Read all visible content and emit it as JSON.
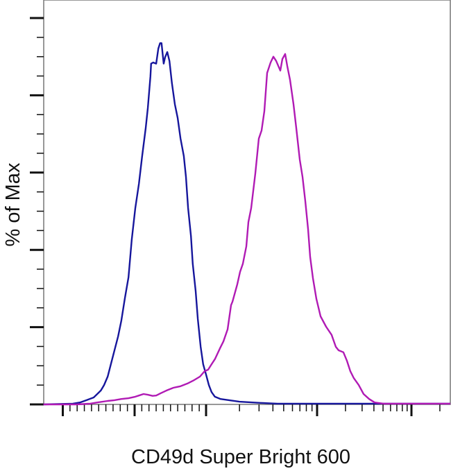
{
  "chart_data": {
    "type": "line",
    "title": "",
    "xlabel": "CD49d Super Bright 600",
    "ylabel": "% of Max",
    "x_scale": "biexponential",
    "xlim": [
      -1270,
      262000
    ],
    "ylim": [
      0,
      104.7
    ],
    "grid": false,
    "legend": "none",
    "y_major_ticks": [
      0,
      20,
      40,
      60,
      80,
      100
    ],
    "y_minor_ticks": [
      5,
      10,
      15,
      25,
      30,
      35,
      45,
      50,
      55,
      65,
      70,
      75,
      85,
      90,
      95
    ],
    "x_major_ticks": [
      -1000,
      0,
      1000,
      10000,
      100000
    ],
    "x_minor_ticks": [
      -900,
      -800,
      -700,
      -600,
      -500,
      -400,
      -300,
      -200,
      -100,
      100,
      200,
      300,
      400,
      500,
      600,
      700,
      800,
      900,
      2000,
      3000,
      4000,
      5000,
      6000,
      7000,
      8000,
      9000,
      20000,
      30000,
      40000,
      50000,
      60000,
      70000,
      80000,
      90000,
      200000
    ],
    "series": [
      {
        "color": "#16169c",
        "points": [
          [
            -1270,
            0
          ],
          [
            -860,
            0.2
          ],
          [
            -760,
            0.5
          ],
          [
            -670,
            1.1
          ],
          [
            -570,
            1.8
          ],
          [
            -520,
            2.7
          ],
          [
            -470,
            3.6
          ],
          [
            -425,
            5.0
          ],
          [
            -375,
            7.2
          ],
          [
            -330,
            10.4
          ],
          [
            -280,
            14.0
          ],
          [
            -230,
            17.6
          ],
          [
            -185,
            21.7
          ],
          [
            -135,
            27.5
          ],
          [
            -85,
            32.9
          ],
          [
            -40,
            42.7
          ],
          [
            10,
            50.8
          ],
          [
            60,
            57.1
          ],
          [
            105,
            64.3
          ],
          [
            155,
            71.5
          ],
          [
            185,
            76.8
          ],
          [
            220,
            84.9
          ],
          [
            230,
            88.2
          ],
          [
            260,
            88.5
          ],
          [
            300,
            88.2
          ],
          [
            330,
            92.1
          ],
          [
            355,
            93.5
          ],
          [
            375,
            93.5
          ],
          [
            405,
            88.2
          ],
          [
            425,
            89.9
          ],
          [
            455,
            91.2
          ],
          [
            485,
            88.9
          ],
          [
            520,
            83.1
          ],
          [
            560,
            77.7
          ],
          [
            600,
            74.1
          ],
          [
            640,
            68.8
          ],
          [
            685,
            64.3
          ],
          [
            715,
            58.9
          ],
          [
            745,
            50.8
          ],
          [
            785,
            43.6
          ],
          [
            810,
            36.4
          ],
          [
            850,
            29.3
          ],
          [
            880,
            22.1
          ],
          [
            920,
            14.9
          ],
          [
            955,
            10.4
          ],
          [
            1000,
            7.7
          ],
          [
            1060,
            5.0
          ],
          [
            1120,
            3.2
          ],
          [
            1200,
            2.0
          ],
          [
            1350,
            1.4
          ],
          [
            1610,
            1.1
          ],
          [
            2000,
            0.7
          ],
          [
            3070,
            0.4
          ],
          [
            4400,
            0.2
          ],
          [
            262000,
            0.2
          ]
        ]
      },
      {
        "color": "#b01ab4",
        "points": [
          [
            -1270,
            0
          ],
          [
            -810,
            0
          ],
          [
            -620,
            0.2
          ],
          [
            -520,
            0.5
          ],
          [
            -375,
            0.9
          ],
          [
            -280,
            1.1
          ],
          [
            -185,
            1.4
          ],
          [
            -85,
            1.6
          ],
          [
            10,
            2.0
          ],
          [
            60,
            2.3
          ],
          [
            125,
            2.7
          ],
          [
            185,
            2.5
          ],
          [
            250,
            2.2
          ],
          [
            300,
            2.3
          ],
          [
            365,
            2.9
          ],
          [
            445,
            3.6
          ],
          [
            540,
            4.3
          ],
          [
            640,
            4.7
          ],
          [
            735,
            5.4
          ],
          [
            830,
            6.3
          ],
          [
            910,
            7.2
          ],
          [
            975,
            8.6
          ],
          [
            1044,
            9.0
          ],
          [
            1120,
            10.4
          ],
          [
            1205,
            11.8
          ],
          [
            1334,
            14.5
          ],
          [
            1432,
            16.3
          ],
          [
            1563,
            19.4
          ],
          [
            1679,
            25.7
          ],
          [
            1730,
            26.6
          ],
          [
            1911,
            31.1
          ],
          [
            2024,
            34.3
          ],
          [
            2143,
            36.4
          ],
          [
            2304,
            40.9
          ],
          [
            2406,
            47.2
          ],
          [
            2547,
            50.8
          ],
          [
            2780,
            59.8
          ],
          [
            2985,
            68.8
          ],
          [
            3162,
            70.9
          ],
          [
            3350,
            75.9
          ],
          [
            3548,
            85.8
          ],
          [
            3811,
            88.5
          ],
          [
            4036,
            90.0
          ],
          [
            4276,
            88.9
          ],
          [
            4665,
            86.4
          ],
          [
            4870,
            89.4
          ],
          [
            5158,
            90.7
          ],
          [
            5383,
            87.6
          ],
          [
            5702,
            84.0
          ],
          [
            6130,
            77.7
          ],
          [
            6494,
            71.5
          ],
          [
            6982,
            63.4
          ],
          [
            7396,
            58.9
          ],
          [
            7834,
            52.6
          ],
          [
            8299,
            45.4
          ],
          [
            8660,
            38.2
          ],
          [
            9173,
            32.7
          ],
          [
            9856,
            27.3
          ],
          [
            10880,
            22.8
          ],
          [
            12460,
            20.1
          ],
          [
            14250,
            18.0
          ],
          [
            15800,
            14.9
          ],
          [
            16900,
            14.0
          ],
          [
            19000,
            13.5
          ],
          [
            20700,
            11.3
          ],
          [
            22500,
            8.6
          ],
          [
            24500,
            6.8
          ],
          [
            27600,
            5.0
          ],
          [
            31100,
            2.7
          ],
          [
            35600,
            1.4
          ],
          [
            40700,
            0.5
          ],
          [
            50800,
            0.2
          ],
          [
            262000,
            0.2
          ]
        ]
      }
    ]
  }
}
